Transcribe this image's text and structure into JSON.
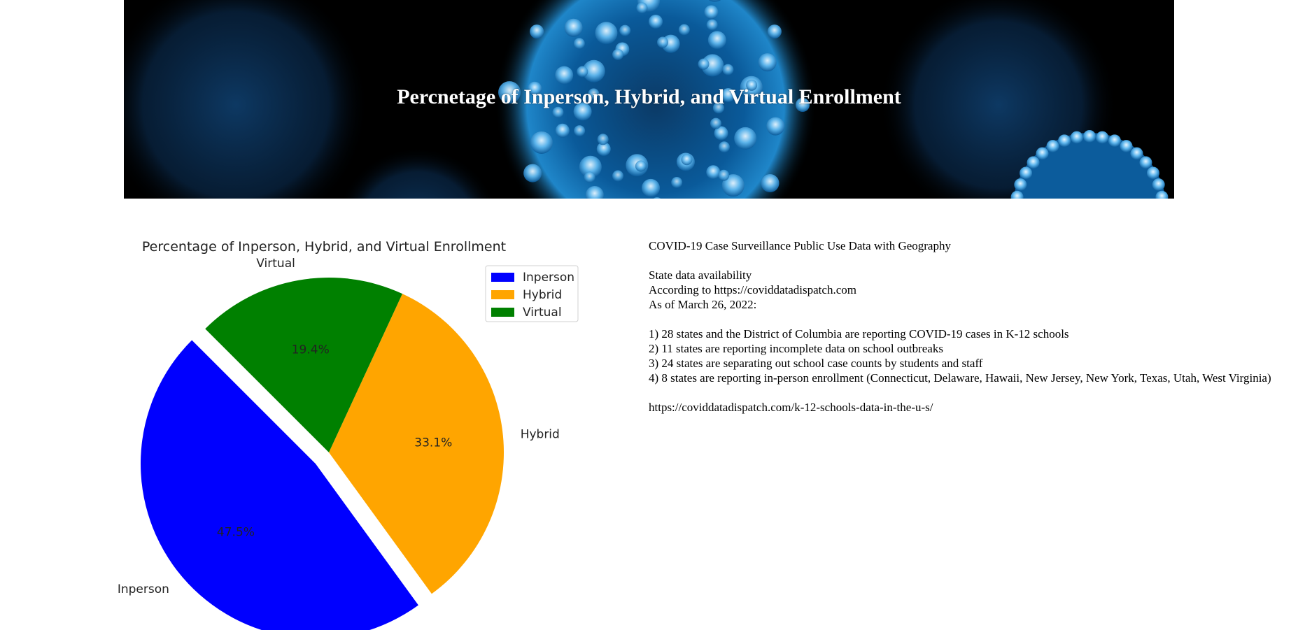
{
  "banner": {
    "title": "Percnetage of Inperson, Hybrid, and Virtual Enrollment"
  },
  "chart_data": {
    "type": "pie",
    "title": "Percentage of Inperson, Hybrid, and Virtual Enrollment",
    "labels": [
      "Inperson",
      "Hybrid",
      "Virtual"
    ],
    "values": [
      47.5,
      33.1,
      19.4
    ],
    "autopct": [
      "47.5%",
      "33.1%",
      "19.4%"
    ],
    "colors": [
      "#0000ff",
      "#ffa500",
      "#008000"
    ],
    "explode": [
      0.1,
      0,
      0
    ],
    "start_angle_deg": 135,
    "legend_position": "upper right",
    "legend": [
      "Inperson",
      "Hybrid",
      "Virtual"
    ]
  },
  "info": {
    "heading": "COVID-19 Case Surveillance Public Use Data with Geography",
    "availability_label": "State data availability",
    "source_line": "According to https://coviddatadispatch.com",
    "date_line": "As of March 26, 2022:",
    "findings": [
      "1) 28 states and the District of Columbia are reporting COVID-19 cases in K-12 schools",
      "2) 11 states are reporting incomplete data on school outbreaks",
      "3) 24 states are separating out school case counts by students and staff",
      "4) 8 states are reporting in-person enrollment (Connecticut, Delaware, Hawaii, New Jersey, New York, Texas, Utah, West Virginia)"
    ],
    "link": "https://coviddatadispatch.com/k-12-schools-data-in-the-u-s/"
  }
}
